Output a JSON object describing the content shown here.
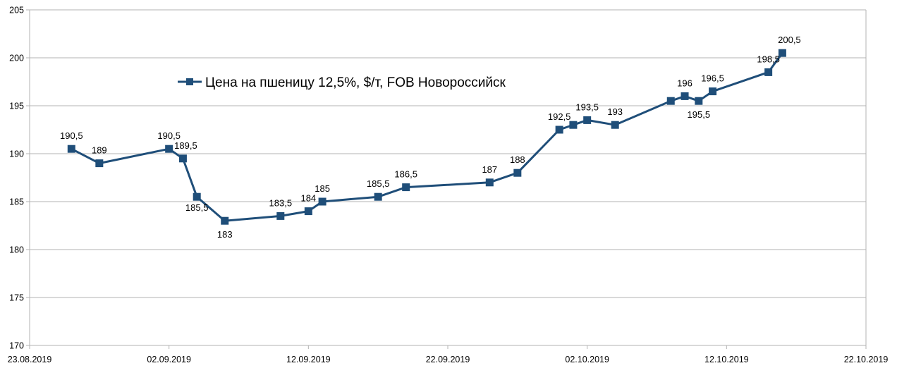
{
  "chart_data": {
    "type": "line",
    "title": "",
    "xlabel": "",
    "ylabel": "",
    "ylim": [
      170,
      205
    ],
    "yticks": [
      170,
      175,
      180,
      185,
      190,
      195,
      200,
      205
    ],
    "ytick_labels": [
      "170",
      "175",
      "180",
      "185",
      "190",
      "195",
      "200",
      "205"
    ],
    "xlim": [
      "2019-08-23",
      "2019-10-22"
    ],
    "xticks": [
      "2019-08-23",
      "2019-09-02",
      "2019-09-12",
      "2019-09-22",
      "2019-10-02",
      "2019-10-12",
      "2019-10-22"
    ],
    "xtick_labels": [
      "23.08.2019",
      "02.09.2019",
      "12.09.2019",
      "22.09.2019",
      "02.10.2019",
      "12.10.2019",
      "22.10.2019"
    ],
    "grid": true,
    "legend_position": "top-left",
    "series": [
      {
        "name": "Цена на пшеницу 12,5%, $/т, FOB Новороссийск",
        "color": "#1F4E79",
        "points": [
          {
            "x": "2019-08-26",
            "y": 190.5,
            "label": "190,5"
          },
          {
            "x": "2019-08-28",
            "y": 189,
            "label": "189"
          },
          {
            "x": "2019-09-02",
            "y": 190.5,
            "label": "190,5"
          },
          {
            "x": "2019-09-03",
            "y": 189.5,
            "label": "189,5"
          },
          {
            "x": "2019-09-04",
            "y": 185.5,
            "label": "185,5"
          },
          {
            "x": "2019-09-06",
            "y": 183,
            "label": "183"
          },
          {
            "x": "2019-09-10",
            "y": 183.5,
            "label": "183,5"
          },
          {
            "x": "2019-09-12",
            "y": 184,
            "label": "184"
          },
          {
            "x": "2019-09-13",
            "y": 185,
            "label": "185"
          },
          {
            "x": "2019-09-17",
            "y": 185.5,
            "label": "185,5"
          },
          {
            "x": "2019-09-19",
            "y": 186.5,
            "label": "186,5"
          },
          {
            "x": "2019-09-25",
            "y": 187,
            "label": "187"
          },
          {
            "x": "2019-09-27",
            "y": 188,
            "label": "188"
          },
          {
            "x": "2019-09-30",
            "y": 192.5,
            "label": "192,5"
          },
          {
            "x": "2019-10-01",
            "y": 193,
            "label": ""
          },
          {
            "x": "2019-10-02",
            "y": 193.5,
            "label": "193,5"
          },
          {
            "x": "2019-10-04",
            "y": 193,
            "label": "193"
          },
          {
            "x": "2019-10-08",
            "y": 195.5,
            "label": ""
          },
          {
            "x": "2019-10-09",
            "y": 196,
            "label": "196"
          },
          {
            "x": "2019-10-10",
            "y": 195.5,
            "label": "195,5"
          },
          {
            "x": "2019-10-11",
            "y": 196.5,
            "label": "196,5"
          },
          {
            "x": "2019-10-15",
            "y": 198.5,
            "label": "198,5"
          },
          {
            "x": "2019-10-16",
            "y": 200.5,
            "label": "200,5"
          }
        ]
      }
    ]
  }
}
